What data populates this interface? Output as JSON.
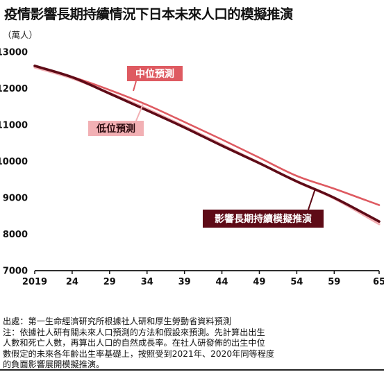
{
  "title": "疫情影響長期持續情況下日本未來人口的模擬推演",
  "chart_data": {
    "type": "line",
    "unit_label": "（萬人）",
    "x": [
      2019,
      2024,
      2029,
      2034,
      2039,
      2044,
      2049,
      2054,
      2059,
      2065
    ],
    "x_tick_labels": [
      "2019",
      "24",
      "29",
      "34",
      "39",
      "44",
      "49",
      "54",
      "59",
      "65"
    ],
    "xlim": [
      2019,
      2065
    ],
    "ylim": [
      7000,
      13000
    ],
    "y_ticks": [
      7000,
      8000,
      9000,
      10000,
      11000,
      12000,
      13000
    ],
    "y_tick_labels": [
      "7000",
      "8000",
      "9000",
      "10000",
      "11000",
      "12000",
      "13000"
    ],
    "grid": false,
    "series": [
      {
        "name": "中位預測",
        "color": "#de5a61",
        "values": [
          12600,
          12320,
          11960,
          11550,
          11080,
          10600,
          10100,
          9600,
          9250,
          8800
        ]
      },
      {
        "name": "低位預測",
        "color": "#f2b0b4",
        "values": [
          12580,
          12280,
          11880,
          11440,
          10960,
          10460,
          9960,
          9440,
          8980,
          8280
        ]
      },
      {
        "name": "影響長期持續模擬推演",
        "color": "#5e0b17",
        "values": [
          12620,
          12310,
          11860,
          11400,
          10930,
          10430,
          9950,
          9450,
          9000,
          8350
        ]
      }
    ]
  },
  "labels": {
    "median": "中位預測",
    "low": "低位預測",
    "simulation": "影響長期持續模擬推演"
  },
  "notes": {
    "source": "出處：第一生命經濟研究所根據社人研和厚生勞動省資料預測",
    "note1": "注：依據社人研有關未來人口預測的方法和假設來預測。先計算出出生",
    "note2": "人數和死亡人數，再算出人口的自然成長率。在社人研發佈的出生中位",
    "note3": "數假定的未來各年齡出生率基礎上，按照受到2021年、2020年同等程度",
    "note4": "的負面影響展開模擬推演。"
  }
}
